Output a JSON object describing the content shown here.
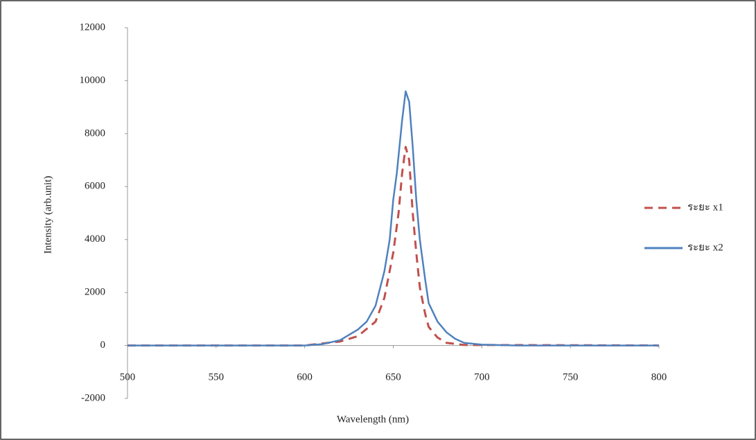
{
  "chart_data": {
    "type": "line",
    "x_label": "Wavelength (nm)",
    "y_label": "Intensity (arb.unit)",
    "xlim": [
      500,
      800
    ],
    "xticks": [
      500,
      550,
      600,
      650,
      700,
      750,
      800
    ],
    "ylim": [
      -2000,
      12000
    ],
    "yticks": [
      -2000,
      0,
      2000,
      4000,
      6000,
      8000,
      10000,
      12000
    ],
    "grid": false,
    "legend": "right",
    "series": [
      {
        "name": "ระยะ x1",
        "color": "#c0504d",
        "style": "dashed",
        "x": [
          500,
          600,
          620,
          630,
          640,
          645,
          650,
          653,
          655,
          657,
          659,
          661,
          663,
          665,
          668,
          670,
          675,
          680,
          690,
          800
        ],
        "values": [
          0,
          0,
          150,
          350,
          900,
          1800,
          3500,
          5000,
          6500,
          7500,
          7000,
          5000,
          3500,
          2200,
          1200,
          700,
          300,
          100,
          20,
          0
        ]
      },
      {
        "name": "ระยะ x2",
        "color": "#4f81bd",
        "style": "solid",
        "x": [
          500,
          600,
          610,
          620,
          630,
          635,
          640,
          645,
          648,
          650,
          652,
          655,
          657,
          659,
          661,
          663,
          665,
          668,
          670,
          675,
          680,
          685,
          690,
          700,
          720,
          800
        ],
        "values": [
          0,
          0,
          50,
          200,
          600,
          900,
          1500,
          2800,
          4000,
          5500,
          6500,
          8500,
          9600,
          9200,
          7500,
          5500,
          4000,
          2500,
          1600,
          900,
          500,
          250,
          100,
          30,
          0,
          0
        ]
      }
    ]
  }
}
